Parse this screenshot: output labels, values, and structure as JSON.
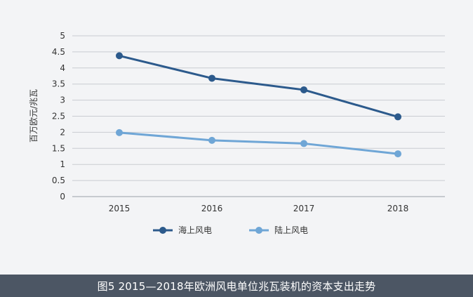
{
  "chart_data": {
    "type": "line",
    "title": "",
    "xlabel": "",
    "ylabel": "百万欧元/兆瓦",
    "x": [
      "2015",
      "2016",
      "2017",
      "2018"
    ],
    "ylim": [
      0,
      5
    ],
    "yticks": [
      "0",
      "0.5",
      "1",
      "1.5",
      "2",
      "2.5",
      "3",
      "3.5",
      "4",
      "4.5",
      "5"
    ],
    "grid": true,
    "legend_position": "bottom-left",
    "series": [
      {
        "name": "海上风电",
        "color": "#2c5a8c",
        "values": [
          4.38,
          3.68,
          3.32,
          2.48
        ]
      },
      {
        "name": "陆上风电",
        "color": "#6fa6d6",
        "values": [
          1.99,
          1.75,
          1.65,
          1.33
        ]
      }
    ]
  },
  "caption": "图5  2015—2018年欧洲风电单位兆瓦装机的资本支出走势"
}
